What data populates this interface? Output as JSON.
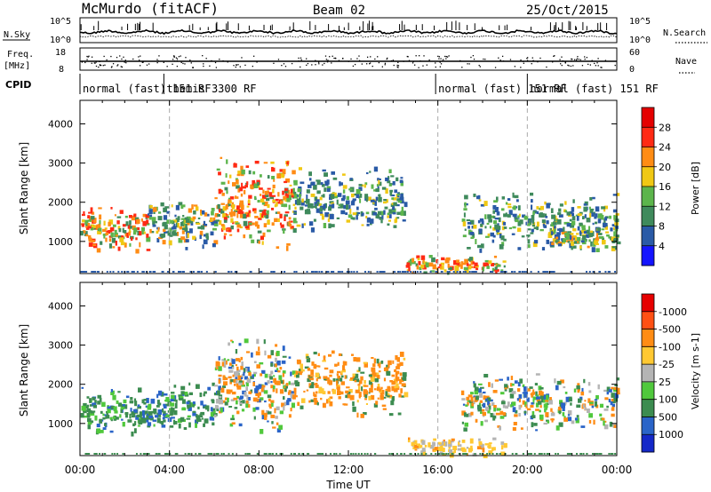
{
  "header": {
    "title": "McMurdo (fitACF)",
    "beam": "Beam 02",
    "date": "25/Oct/2015"
  },
  "summary_panels": {
    "nsky_label": "N.Sky",
    "nsky_ticks": [
      "10^5",
      "10^0"
    ],
    "nsearch_label": "N.Search",
    "nsearch_ticks": [
      "10^5",
      "10^0"
    ],
    "freq_label_1": "Freq.",
    "freq_label_2": "[MHz]",
    "freq_ticks": [
      "18",
      "8"
    ],
    "nave_label": "Nave",
    "nave_ticks": [
      "60",
      "0"
    ],
    "cpid_label": "CPID",
    "cpid_segments": [
      {
        "label": "normal (fast) 151 RF",
        "start_hour": 0
      },
      {
        "label": "themis 3300 RF",
        "start_hour": 3.75
      },
      {
        "label": "normal (fast) 151 RF",
        "start_hour": 15.9
      },
      {
        "label": "normal (fast) 151 RF",
        "start_hour": 20
      }
    ]
  },
  "axes": {
    "ylabel": "Slant Range [km]",
    "yticks": [
      1000,
      2000,
      3000,
      4000
    ],
    "ylim": [
      180,
      4600
    ],
    "xlabel": "Time UT",
    "xticks": [
      "00:00",
      "04:00",
      "08:00",
      "12:00",
      "16:00",
      "20:00",
      "00:00"
    ],
    "xlim_hours": [
      0,
      24
    ],
    "dashed_marker_hours": [
      4,
      16,
      20
    ]
  },
  "chart_data": [
    {
      "type": "heatmap",
      "name": "Power",
      "colorbar_label": "Power [dB]",
      "colorbar_ticks": [
        "4",
        "8",
        "12",
        "16",
        "20",
        "24",
        "28"
      ],
      "colorbar_colors": [
        "#1414ff",
        "#2a5aa6",
        "#3f8a5c",
        "#5cb54c",
        "#f0c814",
        "#ff8c14",
        "#ff2a14",
        "#e40000"
      ],
      "scatter_regions": [
        {
          "t_start": 0.0,
          "t_end": 3.0,
          "range_low": 700,
          "range_high": 2000,
          "level": "high"
        },
        {
          "t_start": 3.0,
          "t_end": 6.0,
          "range_low": 800,
          "range_high": 2100,
          "level": "medium"
        },
        {
          "t_start": 6.0,
          "t_end": 9.5,
          "range_low": 800,
          "range_high": 3300,
          "level": "high"
        },
        {
          "t_start": 9.5,
          "t_end": 14.5,
          "range_low": 1200,
          "range_high": 3000,
          "level": "low"
        },
        {
          "t_start": 14.5,
          "t_end": 19.0,
          "range_low": 200,
          "range_high": 700,
          "level": "high"
        },
        {
          "t_start": 17.0,
          "t_end": 24.0,
          "range_low": 800,
          "range_high": 2300,
          "level": "low"
        },
        {
          "t_start": 21.0,
          "t_end": 24.0,
          "range_low": 800,
          "range_high": 1400,
          "level": "medium"
        }
      ]
    },
    {
      "type": "heatmap",
      "name": "Velocity",
      "colorbar_label": "Velocity [m s-1]",
      "colorbar_ticks": [
        "1000",
        "500",
        "100",
        "25",
        "-25",
        "-100",
        "-500",
        "-1000"
      ],
      "colorbar_colors": [
        "#1428c8",
        "#2a64c8",
        "#3c8c50",
        "#50c83c",
        "#b4b4b4",
        "#ffc832",
        "#ff8c14",
        "#ff5014",
        "#e60000"
      ],
      "scatter_regions": [
        {
          "t_start": 0.0,
          "t_end": 3.0,
          "range_low": 700,
          "range_high": 2000,
          "level": "slow"
        },
        {
          "t_start": 3.0,
          "t_end": 6.0,
          "range_low": 800,
          "range_high": 2100,
          "level": "slow"
        },
        {
          "t_start": 6.0,
          "t_end": 9.5,
          "range_low": 800,
          "range_high": 3300,
          "level": "mixed"
        },
        {
          "t_start": 9.5,
          "t_end": 14.5,
          "range_low": 1200,
          "range_high": 3000,
          "level": "away"
        },
        {
          "t_start": 14.5,
          "t_end": 19.0,
          "range_low": 200,
          "range_high": 700,
          "level": "ground"
        },
        {
          "t_start": 17.0,
          "t_end": 24.0,
          "range_low": 800,
          "range_high": 2300,
          "level": "mixed"
        }
      ]
    }
  ]
}
